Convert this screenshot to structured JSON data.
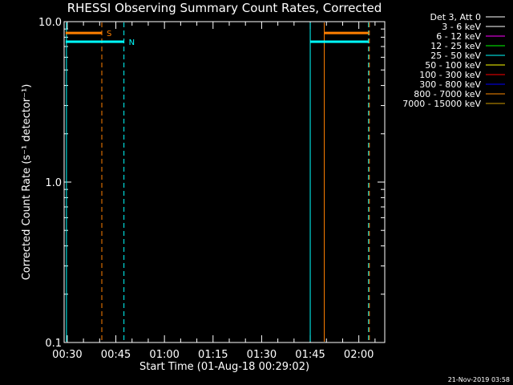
{
  "title": "RHESSI Observing Summary Count Rates, Corrected",
  "footer_date": "21-Nov-2019 03:58",
  "chart_data": {
    "type": "line",
    "title": "RHESSI Observing Summary Count Rates, Corrected",
    "xlabel": "Start Time (01-Aug-18 00:29:02)",
    "ylabel": "Corrected Count Rate (s⁻¹ detector⁻¹)",
    "yscale": "log",
    "ylim": [
      0.1,
      10.0
    ],
    "xlim": [
      "00:29:02",
      "02:08:00"
    ],
    "x_ticks": [
      "00:30",
      "00:45",
      "01:00",
      "01:15",
      "01:30",
      "01:45",
      "02:00"
    ],
    "y_ticks": [
      "0.1",
      "1.0",
      "10.0"
    ],
    "legend": {
      "position": "top-right",
      "header": "Det 3, Att 0",
      "entries": [
        {
          "label": "3 - 6 keV",
          "color": "#ffffff"
        },
        {
          "label": "6 - 12 keV",
          "color": "#ff00ff"
        },
        {
          "label": "12 - 25 keV",
          "color": "#00ff00"
        },
        {
          "label": "25 - 50 keV",
          "color": "#00ffff"
        },
        {
          "label": "50 - 100 keV",
          "color": "#ffff00"
        },
        {
          "label": "100 - 300 keV",
          "color": "#ff0000"
        },
        {
          "label": "300 - 800 keV",
          "color": "#0000ff"
        },
        {
          "label": "800 - 7000 keV",
          "color": "#ff8c00"
        },
        {
          "label": "7000 - 15000 keV",
          "color": "#d29b00"
        }
      ]
    },
    "flag_bars": [
      {
        "label": "S",
        "color": "#ff8000",
        "y": 8.5,
        "segments": [
          [
            "00:29:30",
            "00:40:40"
          ],
          [
            "01:49:20",
            "02:03:00"
          ]
        ]
      },
      {
        "label": "N",
        "color": "#00ffff",
        "y": 7.5,
        "segments": [
          [
            "00:29:30",
            "00:47:30"
          ],
          [
            "01:45:00",
            "02:03:00"
          ]
        ]
      }
    ],
    "markers": [
      {
        "time": "00:29:45",
        "color": "#00ffff",
        "style": "solid"
      },
      {
        "time": "00:40:40",
        "color": "#ff8000",
        "style": "dashed"
      },
      {
        "time": "00:47:30",
        "color": "#00ffff",
        "style": "dashed"
      },
      {
        "time": "01:45:00",
        "color": "#00ffff",
        "style": "solid"
      },
      {
        "time": "01:49:20",
        "color": "#ff8000",
        "style": "solid"
      },
      {
        "time": "02:03:00",
        "color": "#00ffff",
        "style": "dashed"
      },
      {
        "time": "02:03:15",
        "color": "#ff8000",
        "style": "dashed"
      }
    ]
  }
}
